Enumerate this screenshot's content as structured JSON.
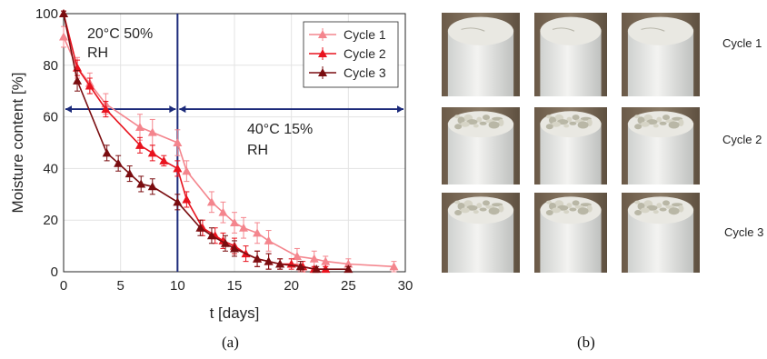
{
  "chart_data": {
    "type": "line",
    "title": "",
    "xlabel": "t [days]",
    "ylabel": "Moisture content [%]",
    "xlim": [
      0,
      30
    ],
    "ylim": [
      0,
      100
    ],
    "xticks": [
      0,
      5,
      10,
      15,
      20,
      25,
      30
    ],
    "yticks": [
      0,
      20,
      40,
      60,
      80,
      100
    ],
    "grid": true,
    "legend_position": "top-right",
    "series": [
      {
        "name": "Cycle 1",
        "color": "#f4858d",
        "x": [
          0,
          1.2,
          2.3,
          3.7,
          6.7,
          7.8,
          10.0,
          10.8,
          13.0,
          14.0,
          15.0,
          15.8,
          17.0,
          18.0,
          20.5,
          22.0,
          23.0,
          25.0,
          29.0
        ],
        "y": [
          91,
          79,
          73,
          65,
          56,
          54,
          50,
          39,
          27,
          23,
          19,
          17,
          15,
          12,
          6,
          5,
          4,
          3,
          2
        ],
        "err": [
          4,
          4,
          4,
          4,
          5,
          5,
          5,
          4,
          4,
          4,
          4,
          4,
          4,
          4,
          3,
          3,
          2,
          2,
          2
        ]
      },
      {
        "name": "Cycle 2",
        "color": "#e8131e",
        "x": [
          0,
          1.2,
          2.3,
          3.7,
          6.7,
          7.8,
          8.8,
          10.0,
          10.8,
          12.2,
          13.3,
          14.0,
          15.0,
          16.0,
          17.0,
          18.0,
          19.0,
          20.0,
          21.0,
          22.0,
          23.0
        ],
        "y": [
          100,
          79,
          72,
          63,
          49,
          46,
          43,
          40,
          28,
          17,
          14,
          12,
          10,
          7,
          5,
          4,
          3,
          3,
          2,
          1,
          1
        ],
        "err": [
          1,
          3,
          3,
          3,
          3,
          3,
          2,
          3,
          3,
          3,
          3,
          3,
          3,
          3,
          3,
          3,
          2,
          2,
          2,
          1,
          1
        ]
      },
      {
        "name": "Cycle 3",
        "color": "#7a0d10",
        "x": [
          0,
          1.2,
          3.8,
          4.8,
          5.8,
          6.8,
          7.8,
          10.0,
          12.0,
          13.0,
          14.2,
          15.0,
          17.0,
          18.0,
          19.0,
          20.8,
          22.2,
          25.0
        ],
        "y": [
          100,
          74,
          46,
          42,
          38,
          34,
          33,
          27,
          17,
          14,
          11,
          9,
          5,
          4,
          3,
          2,
          1,
          1
        ],
        "err": [
          1,
          4,
          3,
          3,
          3,
          3,
          3,
          3,
          3,
          3,
          3,
          3,
          3,
          3,
          2,
          2,
          1,
          1
        ]
      }
    ],
    "annotations": [
      {
        "text_line1": "20°C 50%",
        "text_line2": "RH"
      },
      {
        "text_line1": "40°C 15%",
        "text_line2": "RH"
      }
    ],
    "vertical_line_x": 10,
    "arrow_y": 63
  },
  "captions": {
    "a": "(a)",
    "b": "(b)"
  },
  "photos": {
    "row_labels": [
      "Cycle 1",
      "Cycle 2",
      "Cycle 3"
    ],
    "icon": "sample-photo-icon"
  }
}
